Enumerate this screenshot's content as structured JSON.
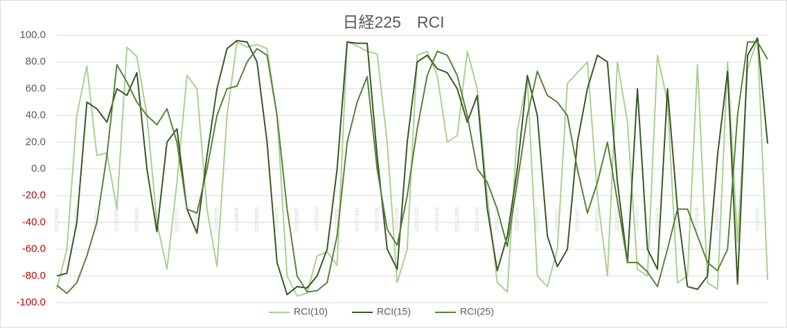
{
  "chart_data": {
    "type": "line",
    "title": "日経225　RCI",
    "categories": [
      "2022/04/22",
      null,
      "2022/05/06",
      null,
      "2022/05/17",
      null,
      "2022/05/30",
      null,
      "2022/06/09",
      null,
      "2022/06/21",
      null,
      "2022/07/01",
      null,
      "2022/07/13",
      null,
      "2022/07/25",
      null,
      "2022/08/04",
      null,
      "2022/08/16",
      null,
      "2022/08/26",
      null,
      "2022/09/07",
      null,
      "2022/09/20",
      null,
      "2022/09/30",
      null,
      "2022/10/12",
      null,
      "2022/10/24",
      null,
      "2022/11/04",
      null,
      "2022/11/16",
      null,
      "2022/11/28",
      null,
      "2022/12/08",
      null,
      "2022/12/20",
      null,
      "2023/01/04",
      null,
      "2023/01/16",
      null,
      "2023/01/26",
      null,
      "2023/02/07",
      null,
      "2023/02/17",
      null,
      "2023/03/01",
      null,
      "2023/03/13",
      null,
      "2023/03/23",
      null,
      "2023/04/04",
      null,
      "2023/04/14",
      null,
      "2023/04/26",
      null,
      "2023/05/09",
      null,
      "2023/05/19",
      null,
      "2023/05/23",
      null
    ],
    "series": [
      {
        "name": "RCI(10)",
        "color": "#a9d18e",
        "values": [
          -90,
          -60,
          40,
          77,
          10,
          12,
          -30,
          91,
          84,
          40,
          -40,
          -75,
          -10,
          70,
          60,
          -30,
          -73,
          40,
          95,
          91,
          93,
          90,
          40,
          -80,
          -95,
          -93,
          -65,
          -62,
          -72,
          95,
          92,
          88,
          86,
          20,
          -85,
          -60,
          85,
          88,
          70,
          20,
          25,
          88,
          60,
          -20,
          -85,
          -92,
          28,
          68,
          -80,
          -88,
          -60,
          64,
          72,
          80,
          -20,
          -80,
          80,
          35,
          -75,
          -80,
          85,
          50,
          -85,
          -80,
          78,
          -85,
          -90,
          80,
          -55,
          75,
          97,
          -83
        ]
      },
      {
        "name": "RCI(15)",
        "color": "#375623",
        "values": [
          -80,
          -78,
          -40,
          50,
          45,
          35,
          60,
          55,
          72,
          0,
          -47,
          20,
          30,
          -30,
          -48,
          10,
          60,
          90,
          96,
          95,
          80,
          20,
          -70,
          -94,
          -88,
          -89,
          -80,
          -60,
          0,
          95,
          94,
          94,
          10,
          -60,
          -75,
          20,
          80,
          85,
          75,
          72,
          60,
          35,
          55,
          -30,
          -76,
          -50,
          0,
          70,
          40,
          -50,
          -73,
          -60,
          20,
          60,
          85,
          80,
          -10,
          -70,
          60,
          -60,
          -75,
          60,
          -30,
          -88,
          -90,
          -80,
          10,
          73,
          -86,
          85,
          98,
          19
        ]
      },
      {
        "name": "RCI(25)",
        "color": "#548235",
        "values": [
          -87,
          -93,
          -85,
          -65,
          -40,
          10,
          78,
          65,
          50,
          40,
          33,
          45,
          20,
          -30,
          -33,
          0,
          40,
          60,
          62,
          80,
          90,
          85,
          40,
          -30,
          -80,
          -92,
          -91,
          -85,
          -50,
          20,
          50,
          69,
          0,
          -45,
          -57,
          -20,
          30,
          70,
          88,
          85,
          70,
          40,
          0,
          -10,
          -30,
          -58,
          -10,
          40,
          73,
          55,
          50,
          40,
          0,
          -33,
          -10,
          20,
          -24,
          -70,
          -70,
          -77,
          -88,
          -60,
          -30,
          -30,
          -50,
          -70,
          -76,
          -60,
          40,
          95,
          95,
          82
        ]
      }
    ],
    "ylim": [
      -100,
      100
    ],
    "yticks": [
      {
        "value": -100,
        "label": "-100.0"
      },
      {
        "value": -80,
        "label": "-80.0"
      },
      {
        "value": -60,
        "label": "-60.0"
      },
      {
        "value": -40,
        "label": "-40.0"
      },
      {
        "value": -20,
        "label": "-20.0"
      },
      {
        "value": 0,
        "label": "0.0"
      },
      {
        "value": 20,
        "label": "20.0"
      },
      {
        "value": 40,
        "label": "40.0"
      },
      {
        "value": 60,
        "label": "60.0"
      },
      {
        "value": 80,
        "label": "80.0"
      },
      {
        "value": 100,
        "label": "100.0"
      }
    ],
    "negative_tick_color": "#c00000",
    "grid": true,
    "legend": "bottom"
  }
}
